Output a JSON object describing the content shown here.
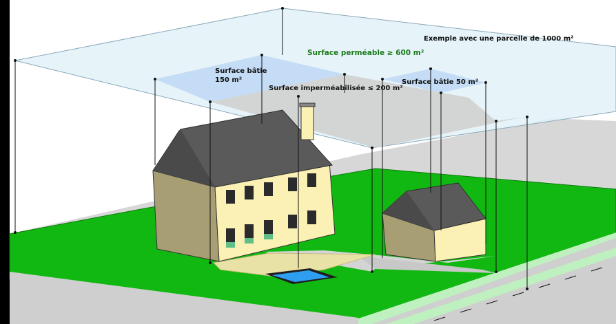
{
  "diagram": {
    "example_caption": "Exemple avec une parcelle de 1000 m²",
    "permeable_label": "Surface perméable ≥ 600 m²",
    "house_area_label_line1": "Surface bâtie",
    "house_area_label_line2": "150 m²",
    "impermeable_label": "Surface imperméabilisée ≤ 200 m²",
    "annex_area_label": "Surface bâtie 50 m²"
  },
  "colors": {
    "lawn": "#12b812",
    "lawn_border": "#0a7a0a",
    "ground_gray": "#d7d7d7",
    "pavement": "#d3d3d3",
    "plot_plane": "#e2f1f8",
    "built_zone": "#c2daf4",
    "impermeable_zone": "#cfcfcf",
    "permeable_text": "#1a7a1a",
    "house_wall": "#fbf1b4",
    "house_side": "#a89e73",
    "roof": "#5a5a5a",
    "pool_water": "#2e9ff0",
    "terrace_paving": "#e9e2a6",
    "road_edge": "#bff0c0"
  }
}
